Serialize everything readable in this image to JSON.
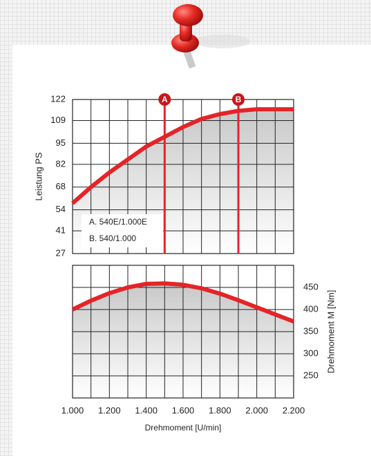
{
  "chart_data": [
    {
      "type": "line",
      "y_label": "Leistung PS",
      "color": "#e42428",
      "x": [
        1000,
        1100,
        1200,
        1300,
        1400,
        1500,
        1600,
        1700,
        1800,
        1900,
        2000,
        2100,
        2200
      ],
      "values": [
        58,
        68,
        77,
        85,
        93,
        99,
        105,
        110,
        113,
        115,
        116,
        116,
        116
      ],
      "xlim": [
        1000,
        2200
      ],
      "ylim": [
        27,
        122
      ],
      "yticks": [
        27,
        41,
        54,
        68,
        82,
        95,
        109,
        122
      ],
      "markers": [
        {
          "label": "A",
          "x": 1500,
          "text": "A. 540E/1.000E"
        },
        {
          "label": "B",
          "x": 1900,
          "text": "B. 540/1.000"
        }
      ]
    },
    {
      "type": "line",
      "x_label": "Drehmoment [U/min]",
      "y2_label": "Drehmoment M [Nm]",
      "color": "#e42428",
      "x": [
        1000,
        1100,
        1200,
        1300,
        1400,
        1500,
        1600,
        1700,
        1800,
        1900,
        2000,
        2100,
        2200
      ],
      "values": [
        400,
        420,
        437,
        450,
        458,
        459,
        456,
        448,
        436,
        421,
        405,
        389,
        373
      ],
      "xlim": [
        1000,
        2200
      ],
      "xticks": [
        {
          "value": 1000,
          "label": "1.000"
        },
        {
          "value": 1200,
          "label": "1.200"
        },
        {
          "value": 1400,
          "label": "1.400"
        },
        {
          "value": 1600,
          "label": "1.600"
        },
        {
          "value": 1800,
          "label": "1.800"
        },
        {
          "value": 2000,
          "label": "2.000"
        },
        {
          "value": 2200,
          "label": "2.200"
        }
      ],
      "y2lim": [
        200,
        500
      ],
      "y2ticks": [
        250,
        300,
        350,
        400,
        450
      ]
    }
  ]
}
